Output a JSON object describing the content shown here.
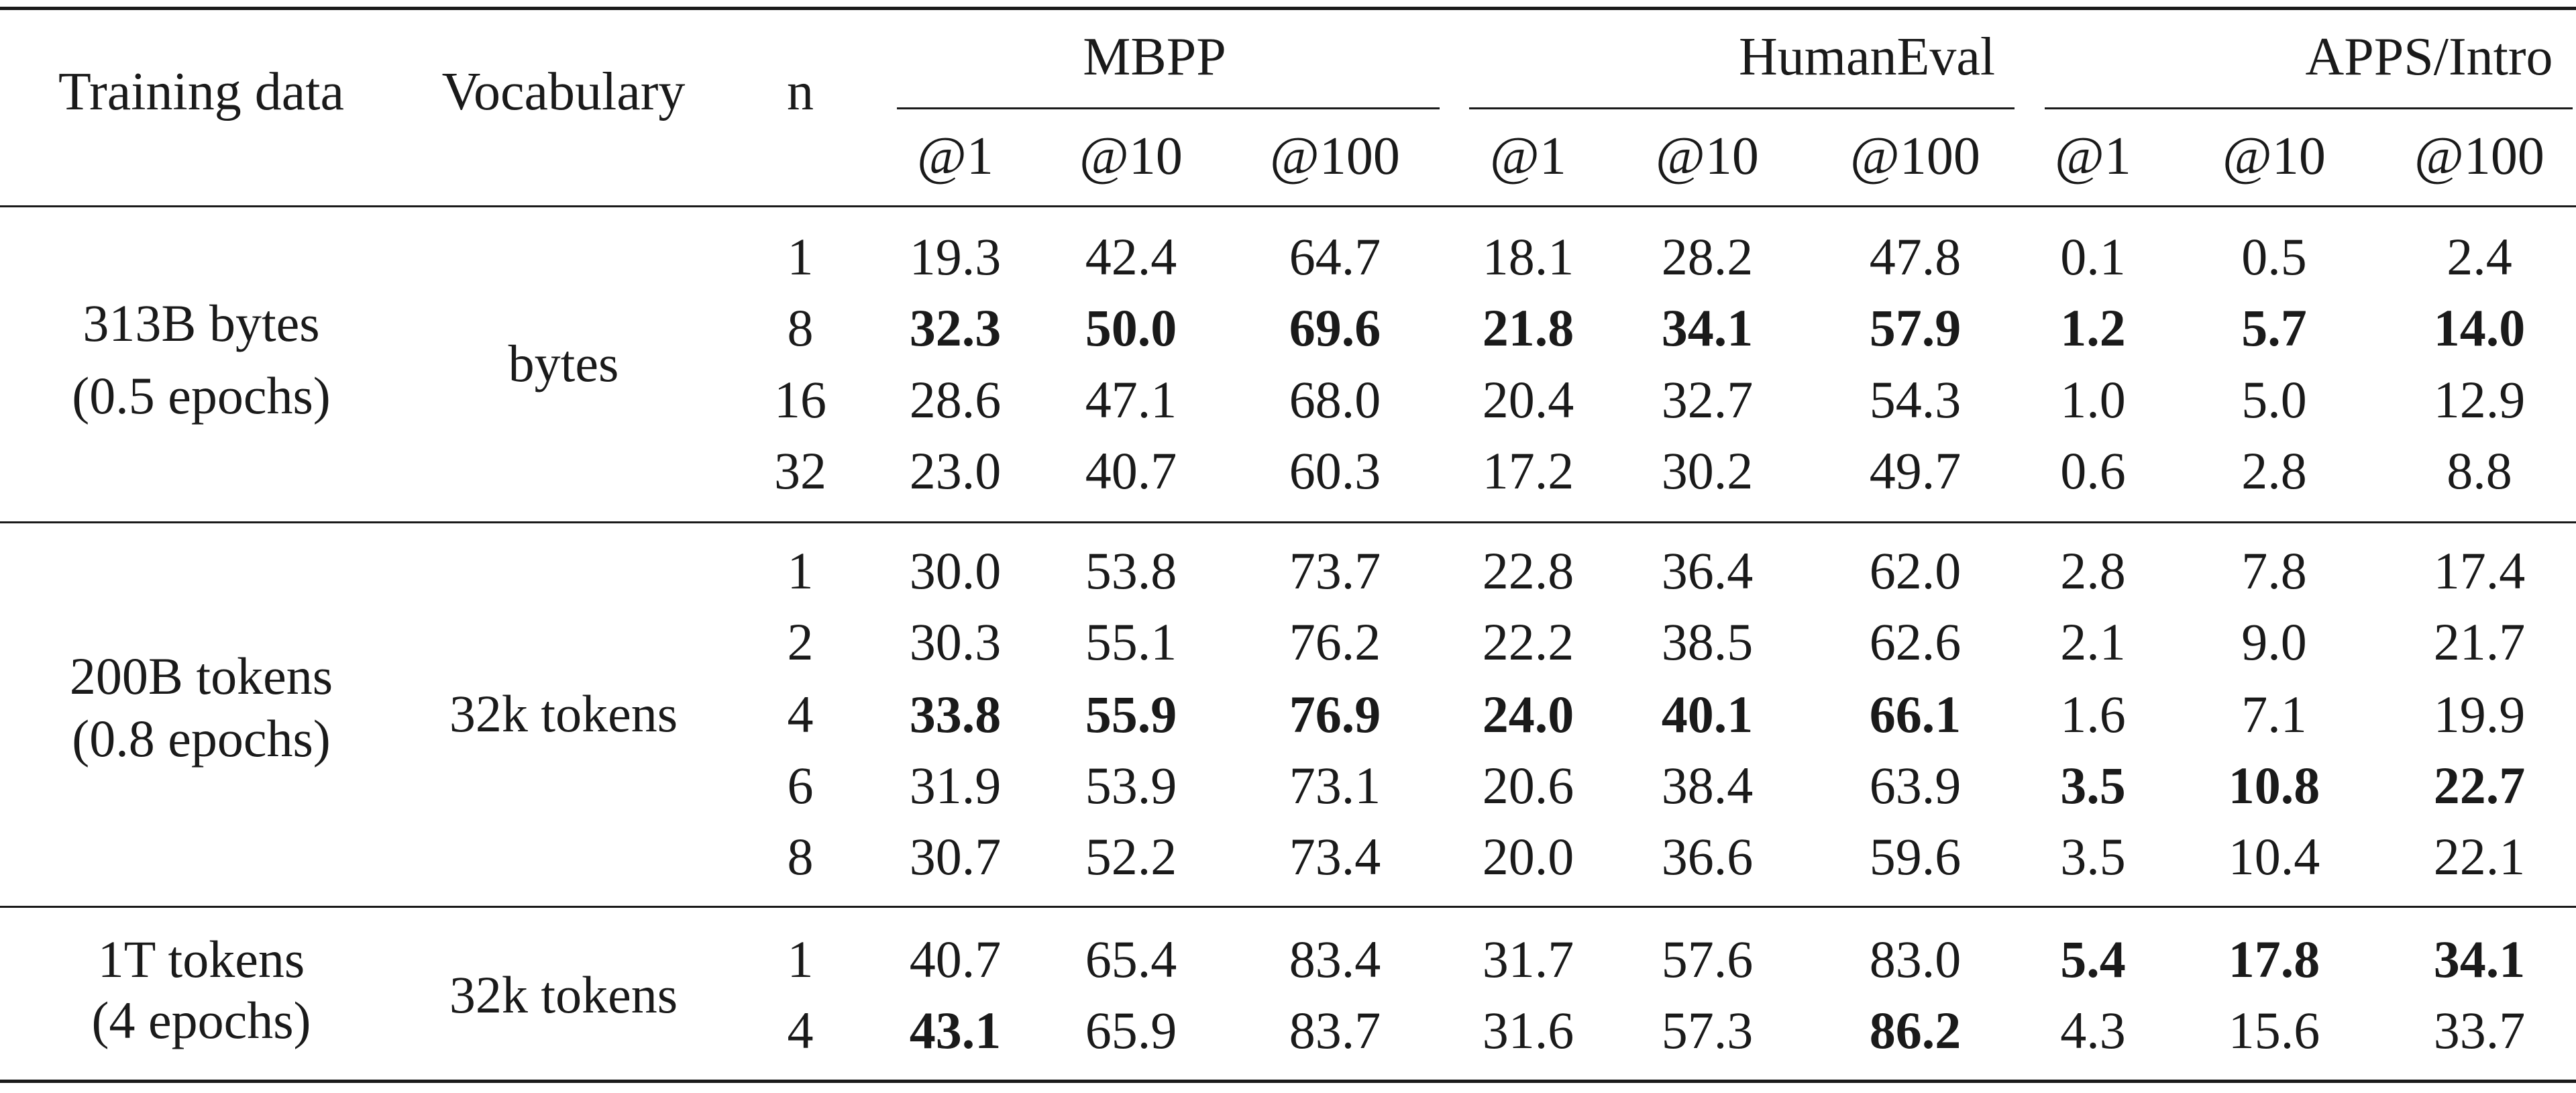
{
  "table": {
    "header": {
      "col_training": "Training data",
      "col_vocab": "Vocabulary",
      "col_n": "n",
      "groups": [
        {
          "name": "MBPP",
          "subs": [
            "@1",
            "@10",
            "@100"
          ]
        },
        {
          "name": "HumanEval",
          "subs": [
            "@1",
            "@10",
            "@100"
          ]
        },
        {
          "name": "APPS/Intro",
          "subs": [
            "@1",
            "@10",
            "@100"
          ]
        }
      ]
    },
    "blocks": [
      {
        "training": [
          "313B bytes",
          "(0.5 epochs)"
        ],
        "vocab": "bytes",
        "rows": [
          {
            "n": "1",
            "values": [
              "19.3",
              "42.4",
              "64.7",
              "18.1",
              "28.2",
              "47.8",
              "0.1",
              "0.5",
              "2.4"
            ],
            "bold": [
              false,
              false,
              false,
              false,
              false,
              false,
              false,
              false,
              false
            ]
          },
          {
            "n": "8",
            "values": [
              "32.3",
              "50.0",
              "69.6",
              "21.8",
              "34.1",
              "57.9",
              "1.2",
              "5.7",
              "14.0"
            ],
            "bold": [
              true,
              true,
              true,
              true,
              true,
              true,
              true,
              true,
              true
            ]
          },
          {
            "n": "16",
            "values": [
              "28.6",
              "47.1",
              "68.0",
              "20.4",
              "32.7",
              "54.3",
              "1.0",
              "5.0",
              "12.9"
            ],
            "bold": [
              false,
              false,
              false,
              false,
              false,
              false,
              false,
              false,
              false
            ]
          },
          {
            "n": "32",
            "values": [
              "23.0",
              "40.7",
              "60.3",
              "17.2",
              "30.2",
              "49.7",
              "0.6",
              "2.8",
              "8.8"
            ],
            "bold": [
              false,
              false,
              false,
              false,
              false,
              false,
              false,
              false,
              false
            ]
          }
        ]
      },
      {
        "training": [
          "200B tokens",
          "(0.8 epochs)"
        ],
        "vocab": "32k tokens",
        "rows": [
          {
            "n": "1",
            "values": [
              "30.0",
              "53.8",
              "73.7",
              "22.8",
              "36.4",
              "62.0",
              "2.8",
              "7.8",
              "17.4"
            ],
            "bold": [
              false,
              false,
              false,
              false,
              false,
              false,
              false,
              false,
              false
            ]
          },
          {
            "n": "2",
            "values": [
              "30.3",
              "55.1",
              "76.2",
              "22.2",
              "38.5",
              "62.6",
              "2.1",
              "9.0",
              "21.7"
            ],
            "bold": [
              false,
              false,
              false,
              false,
              false,
              false,
              false,
              false,
              false
            ]
          },
          {
            "n": "4",
            "values": [
              "33.8",
              "55.9",
              "76.9",
              "24.0",
              "40.1",
              "66.1",
              "1.6",
              "7.1",
              "19.9"
            ],
            "bold": [
              true,
              true,
              true,
              true,
              true,
              true,
              false,
              false,
              false
            ]
          },
          {
            "n": "6",
            "values": [
              "31.9",
              "53.9",
              "73.1",
              "20.6",
              "38.4",
              "63.9",
              "3.5",
              "10.8",
              "22.7"
            ],
            "bold": [
              false,
              false,
              false,
              false,
              false,
              false,
              true,
              true,
              true
            ]
          },
          {
            "n": "8",
            "values": [
              "30.7",
              "52.2",
              "73.4",
              "20.0",
              "36.6",
              "59.6",
              "3.5",
              "10.4",
              "22.1"
            ],
            "bold": [
              false,
              false,
              false,
              false,
              false,
              false,
              false,
              false,
              false
            ]
          }
        ]
      },
      {
        "training": [
          "1T tokens",
          "(4 epochs)"
        ],
        "vocab": "32k tokens",
        "rows": [
          {
            "n": "1",
            "values": [
              "40.7",
              "65.4",
              "83.4",
              "31.7",
              "57.6",
              "83.0",
              "5.4",
              "17.8",
              "34.1"
            ],
            "bold": [
              false,
              false,
              false,
              false,
              false,
              false,
              true,
              true,
              true
            ]
          },
          {
            "n": "4",
            "values": [
              "43.1",
              "65.9",
              "83.7",
              "31.6",
              "57.3",
              "86.2",
              "4.3",
              "15.6",
              "33.7"
            ],
            "bold": [
              true,
              false,
              false,
              false,
              false,
              true,
              false,
              false,
              false
            ]
          }
        ]
      }
    ]
  }
}
